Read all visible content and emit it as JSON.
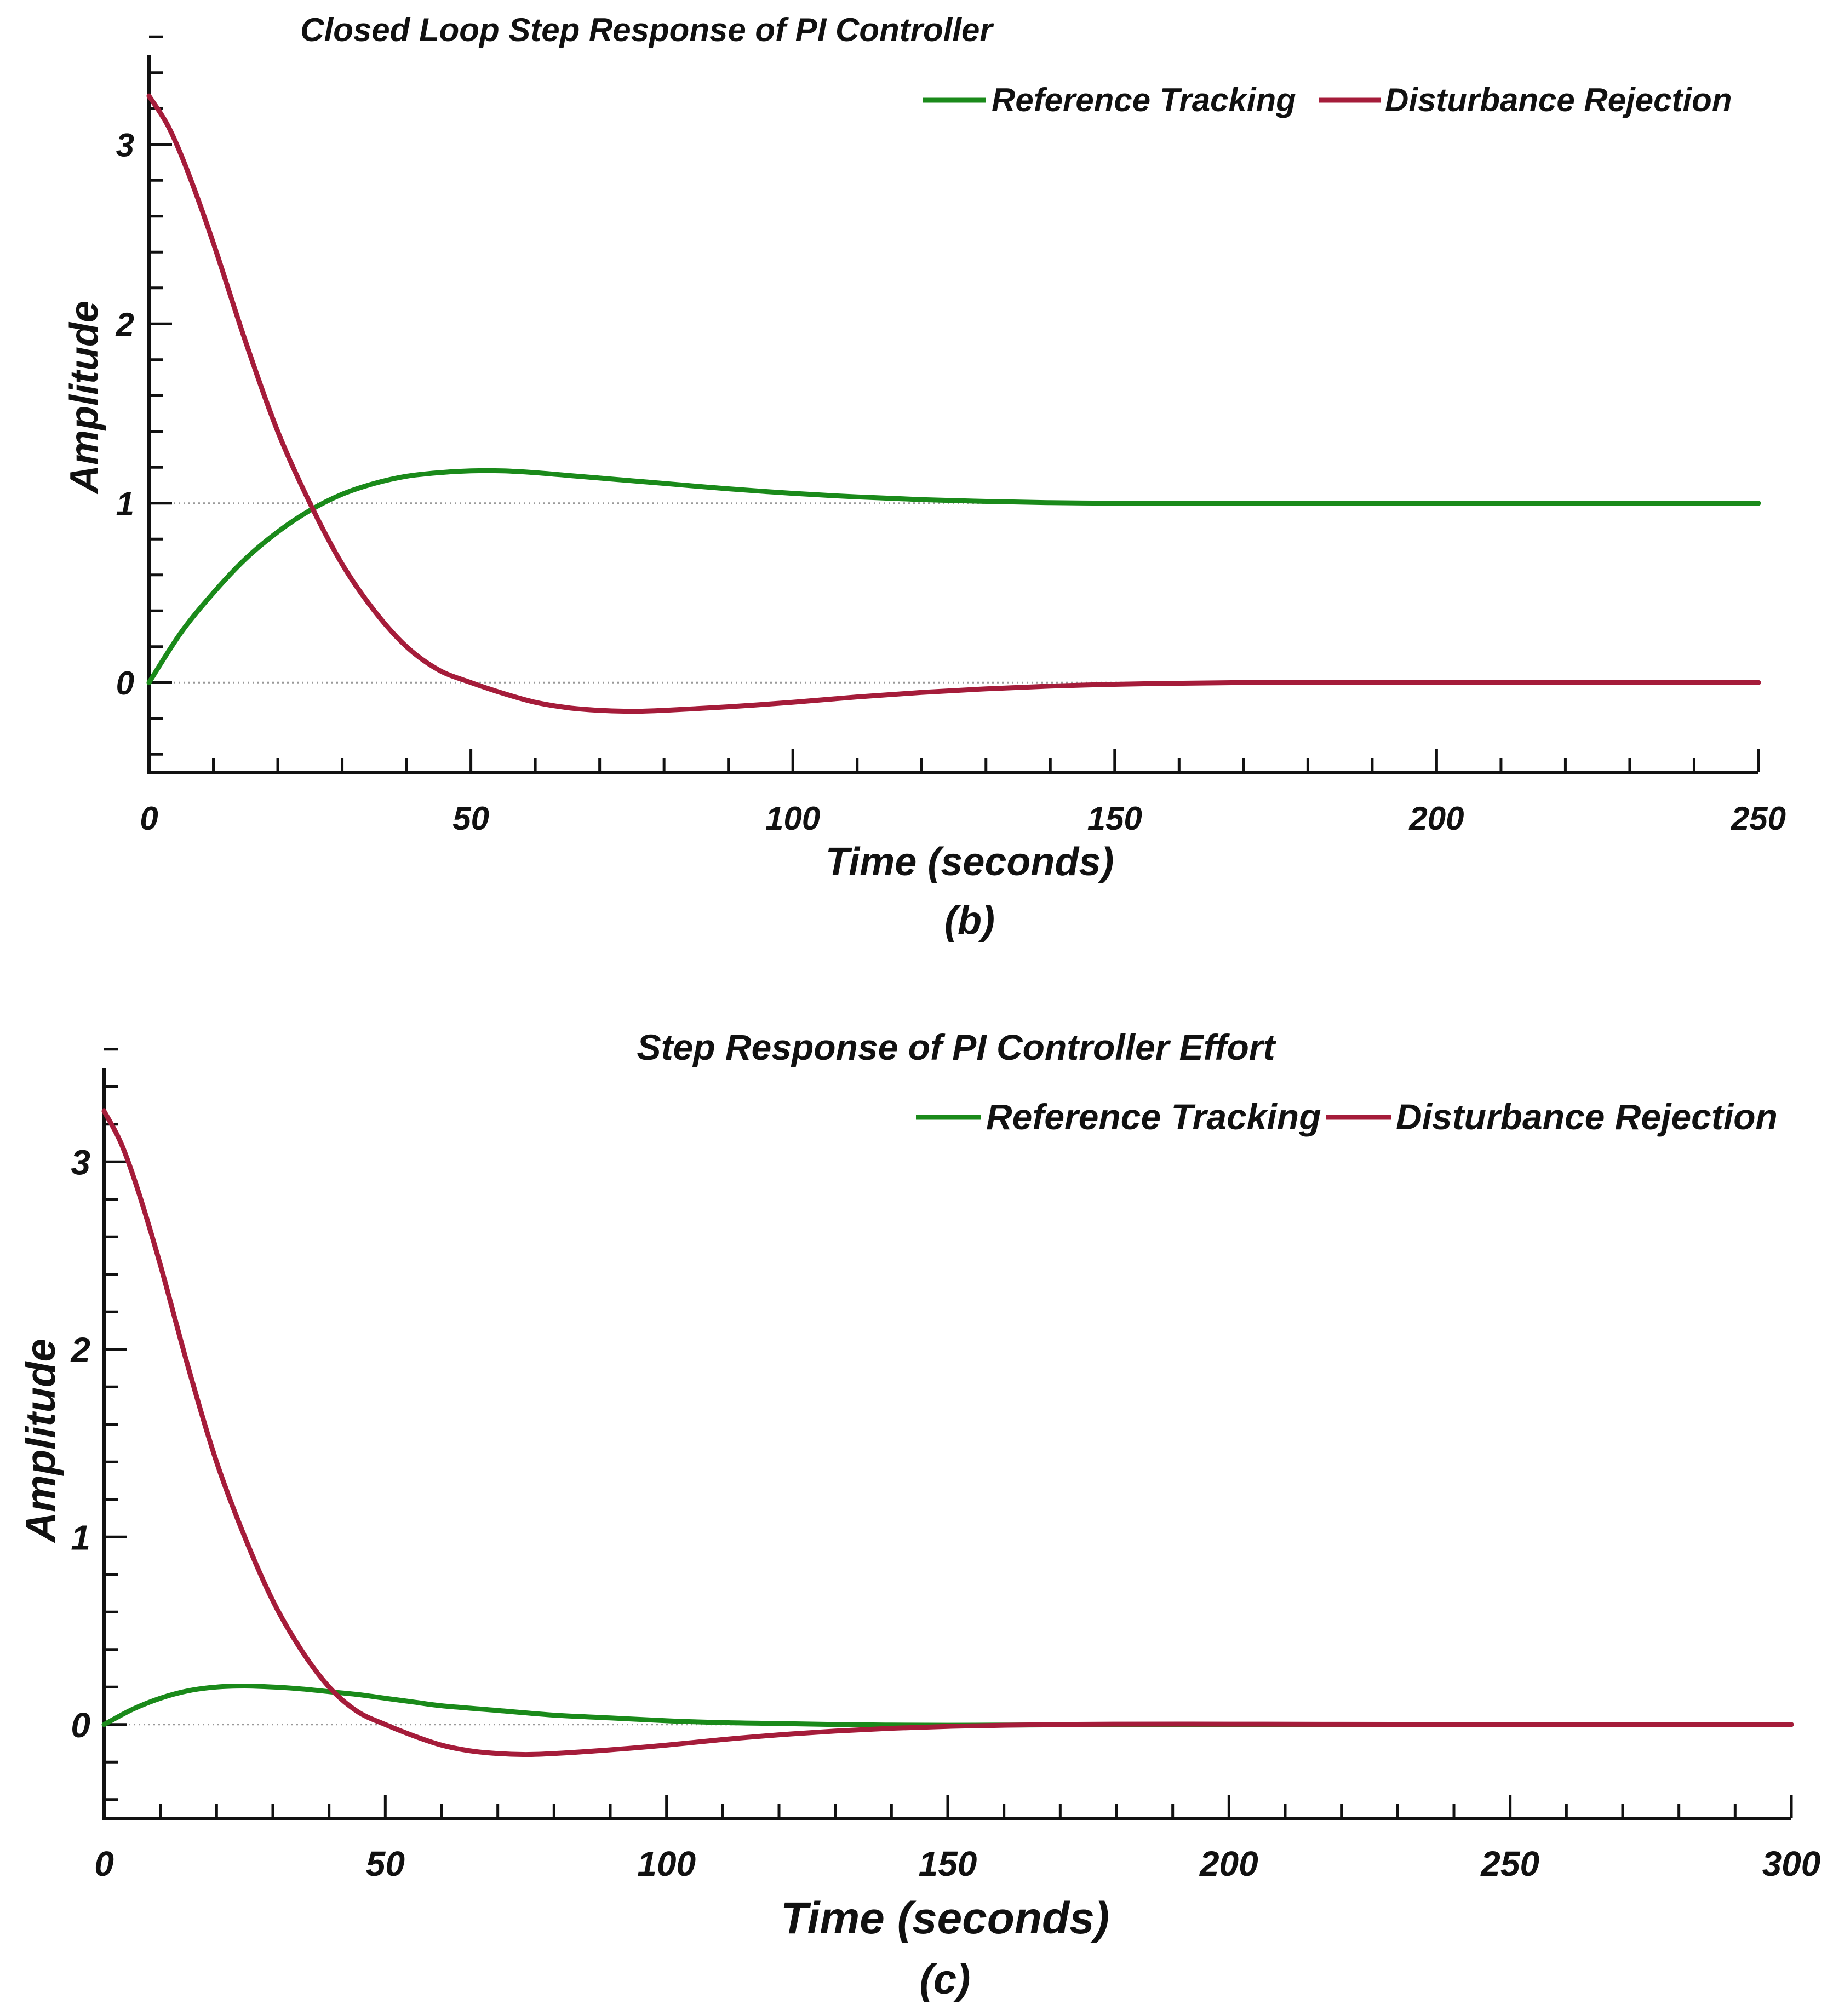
{
  "chart_data": [
    {
      "type": "line",
      "title": "Closed Loop Step Response of PI Controller",
      "xlabel": "Time (seconds)",
      "ylabel": "Amplitude",
      "caption": "(b)",
      "xlim": [
        0,
        250
      ],
      "ylim": [
        -0.5,
        3.5
      ],
      "xticks": [
        0,
        50,
        100,
        150,
        200,
        250
      ],
      "xtick_labels": [
        "0",
        "50",
        "100",
        "150",
        "200",
        "250"
      ],
      "yticks": [
        0,
        1,
        2,
        3
      ],
      "ytick_labels": [
        "0",
        "1",
        "2",
        "3"
      ],
      "reference_lines": [
        0,
        1
      ],
      "legend_position": "top-right",
      "series": [
        {
          "name": "Reference Tracking",
          "color": "#1a8a1a",
          "x": [
            0,
            5,
            10,
            15,
            20,
            25,
            30,
            35,
            40,
            45,
            50,
            55,
            60,
            65,
            70,
            75,
            80,
            90,
            100,
            110,
            120,
            130,
            140,
            150,
            160,
            170,
            180,
            190,
            200,
            210,
            220,
            230,
            240,
            250
          ],
          "y": [
            0,
            0.28,
            0.5,
            0.69,
            0.84,
            0.96,
            1.05,
            1.11,
            1.15,
            1.17,
            1.18,
            1.18,
            1.17,
            1.155,
            1.14,
            1.125,
            1.11,
            1.08,
            1.055,
            1.035,
            1.02,
            1.01,
            1.003,
            1.0,
            0.998,
            0.998,
            0.999,
            1.0,
            1.0,
            1.0,
            1.0,
            1.0,
            1.0,
            1.0
          ]
        },
        {
          "name": "Disturbance Rejection",
          "color": "#a51c3a",
          "x": [
            0,
            3,
            6,
            10,
            15,
            20,
            25,
            30,
            35,
            40,
            45,
            50,
            55,
            60,
            65,
            70,
            75,
            80,
            90,
            100,
            110,
            120,
            130,
            140,
            150,
            160,
            170,
            180,
            190,
            200,
            210,
            220,
            230,
            240,
            250
          ],
          "y": [
            3.27,
            3.1,
            2.85,
            2.45,
            1.9,
            1.4,
            1.0,
            0.66,
            0.4,
            0.2,
            0.07,
            0.0,
            -0.06,
            -0.11,
            -0.14,
            -0.155,
            -0.16,
            -0.155,
            -0.135,
            -0.11,
            -0.08,
            -0.055,
            -0.035,
            -0.02,
            -0.01,
            -0.004,
            0.0,
            0.002,
            0.002,
            0.002,
            0.001,
            0.0,
            0.0,
            0.0,
            0.0
          ]
        }
      ]
    },
    {
      "type": "line",
      "title": "Step Response of PI Controller Effort",
      "xlabel": "Time (seconds)",
      "ylabel": "Amplitude",
      "caption": "(c)",
      "xlim": [
        0,
        300
      ],
      "ylim": [
        -0.5,
        3.5
      ],
      "xticks": [
        0,
        50,
        100,
        150,
        200,
        250,
        300
      ],
      "xtick_labels": [
        "0",
        "50",
        "100",
        "150",
        "200",
        "250",
        "300"
      ],
      "yticks": [
        0,
        1,
        2,
        3
      ],
      "ytick_labels": [
        "0",
        "1",
        "2",
        "3"
      ],
      "reference_lines": [
        0
      ],
      "legend_position": "top-right",
      "series": [
        {
          "name": "Reference Tracking",
          "color": "#1a8a1a",
          "x": [
            0,
            5,
            10,
            15,
            20,
            25,
            30,
            35,
            40,
            45,
            50,
            55,
            60,
            70,
            80,
            90,
            100,
            110,
            120,
            130,
            140,
            150,
            160,
            170,
            180,
            200,
            220,
            250,
            300
          ],
          "y": [
            0,
            0.08,
            0.14,
            0.18,
            0.2,
            0.205,
            0.2,
            0.19,
            0.175,
            0.16,
            0.14,
            0.12,
            0.1,
            0.075,
            0.05,
            0.035,
            0.02,
            0.01,
            0.005,
            0.0,
            -0.003,
            -0.004,
            -0.003,
            -0.002,
            -0.001,
            0.0,
            0.0,
            0.0,
            0.0
          ]
        },
        {
          "name": "Disturbance Rejection",
          "color": "#a51c3a",
          "x": [
            0,
            3,
            6,
            10,
            15,
            20,
            25,
            30,
            35,
            40,
            45,
            50,
            55,
            60,
            65,
            70,
            75,
            80,
            90,
            100,
            110,
            120,
            130,
            140,
            150,
            160,
            170,
            180,
            200,
            220,
            250,
            300
          ],
          "y": [
            3.27,
            3.1,
            2.85,
            2.45,
            1.9,
            1.4,
            1.0,
            0.66,
            0.4,
            0.2,
            0.07,
            0.0,
            -0.06,
            -0.11,
            -0.14,
            -0.155,
            -0.16,
            -0.155,
            -0.135,
            -0.11,
            -0.08,
            -0.055,
            -0.035,
            -0.02,
            -0.01,
            -0.004,
            0.0,
            0.002,
            0.002,
            0.001,
            0.0,
            0.0
          ]
        }
      ]
    }
  ]
}
